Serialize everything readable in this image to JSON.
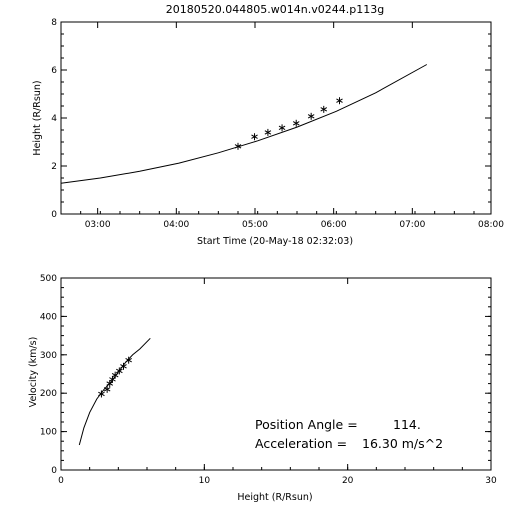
{
  "chart_data": [
    {
      "type": "line",
      "title": "20180520.044805.w014n.v0244.p113g",
      "xlabel": "Start Time (20-May-18 02:32:03)",
      "ylabel": "Height (R/Rsun)",
      "x_unit": "hours since 02:32:03",
      "xlim": [
        0,
        5.466
      ],
      "ylim": [
        0,
        8
      ],
      "xticks": [
        {
          "value": 0.466,
          "label": "03:00"
        },
        {
          "value": 1.466,
          "label": "04:00"
        },
        {
          "value": 2.466,
          "label": "05:00"
        },
        {
          "value": 3.466,
          "label": "06:00"
        },
        {
          "value": 4.466,
          "label": "07:00"
        },
        {
          "value": 5.466,
          "label": "08:00"
        }
      ],
      "yticks": [
        0,
        2,
        4,
        6,
        8
      ],
      "fit_curve": {
        "x": [
          0,
          0.5,
          1.0,
          1.5,
          2.0,
          2.5,
          3.0,
          3.5,
          4.0,
          4.65
        ],
        "y": [
          1.28,
          1.5,
          1.78,
          2.12,
          2.55,
          3.05,
          3.62,
          4.28,
          5.05,
          6.23
        ]
      },
      "points": {
        "x": [
          2.25,
          2.46,
          2.63,
          2.81,
          2.99,
          3.18,
          3.34,
          3.54
        ],
        "y": [
          2.82,
          3.22,
          3.4,
          3.59,
          3.78,
          4.07,
          4.36,
          4.72
        ]
      },
      "grid": false
    },
    {
      "type": "line",
      "title": "",
      "xlabel": "Height (R/Rsun)",
      "ylabel": "Velocity (km/s)",
      "xlim": [
        0,
        30
      ],
      "ylim": [
        0,
        500
      ],
      "xticks": [
        0,
        10,
        20,
        30
      ],
      "yticks": [
        0,
        100,
        200,
        300,
        400,
        500
      ],
      "fit_curve": {
        "x": [
          1.28,
          1.6,
          2.0,
          2.5,
          3.0,
          3.5,
          4.0,
          4.5,
          5.0,
          5.5,
          6.23
        ],
        "y": [
          65,
          110,
          150,
          185,
          210,
          230,
          255,
          280,
          300,
          315,
          343
        ]
      },
      "points": {
        "x": [
          2.82,
          3.22,
          3.4,
          3.59,
          3.78,
          4.07,
          4.36,
          4.72
        ],
        "y": [
          198,
          210,
          225,
          236,
          247,
          258,
          270,
          286
        ]
      },
      "annotations": [
        {
          "label": "Position Angle =",
          "value": "114."
        },
        {
          "label": "Acceleration =",
          "value": "16.30 m/s^2"
        }
      ],
      "grid": false
    }
  ]
}
